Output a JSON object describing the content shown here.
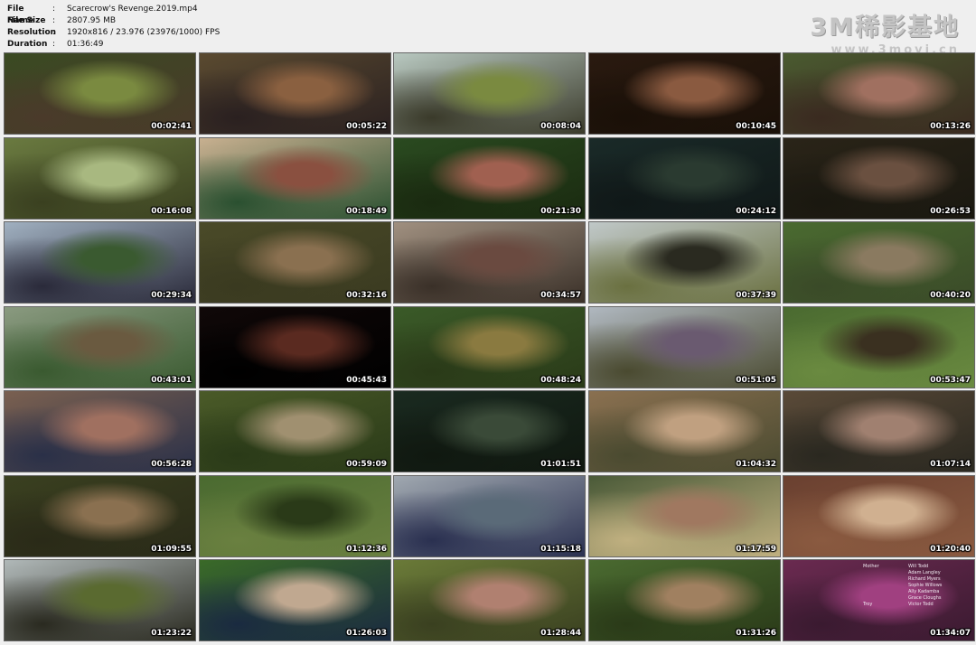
{
  "file_info": {
    "rows": [
      {
        "key": "File Name",
        "value": "Scarecrow's Revenge.2019.mp4"
      },
      {
        "key": "File Size",
        "value": "2807.95 MB"
      },
      {
        "key": "Resolution",
        "value": "1920x816 / 23.976 (23976/1000) FPS"
      },
      {
        "key": "Duration",
        "value": "01:36:49"
      }
    ],
    "separator": ":"
  },
  "watermark": {
    "main": "3M稀影基地",
    "sub": "www.3movi.cn"
  },
  "thumbnails": [
    {
      "time": "00:02:41",
      "colors": [
        "#3a4a22",
        "#7a8a40",
        "#4a3a2a"
      ]
    },
    {
      "time": "00:05:22",
      "colors": [
        "#5a4a30",
        "#8a6040",
        "#2a2020"
      ]
    },
    {
      "time": "00:08:04",
      "colors": [
        "#b8c8c0",
        "#7a8a40",
        "#3a3a2a"
      ]
    },
    {
      "time": "00:10:45",
      "colors": [
        "#2a1a10",
        "#8a5a40",
        "#1a1008"
      ]
    },
    {
      "time": "00:13:26",
      "colors": [
        "#4a5a30",
        "#a07060",
        "#3a2a20"
      ]
    },
    {
      "time": "00:16:08",
      "colors": [
        "#6a7a40",
        "#a8b880",
        "#3a4020"
      ]
    },
    {
      "time": "00:18:49",
      "colors": [
        "#c8b090",
        "#8a5040",
        "#2a5030"
      ]
    },
    {
      "time": "00:21:30",
      "colors": [
        "#2a4a20",
        "#a06050",
        "#1a2a10"
      ]
    },
    {
      "time": "00:24:12",
      "colors": [
        "#1a2a28",
        "#2a3a30",
        "#101818"
      ]
    },
    {
      "time": "00:26:53",
      "colors": [
        "#2a2418",
        "#6a5040",
        "#1a1810"
      ]
    },
    {
      "time": "00:29:34",
      "colors": [
        "#a0b0c0",
        "#3a5a30",
        "#2a2a3a"
      ]
    },
    {
      "time": "00:32:16",
      "colors": [
        "#4a4a28",
        "#8a7050",
        "#3a3a20"
      ]
    },
    {
      "time": "00:34:57",
      "colors": [
        "#a09080",
        "#6a4a40",
        "#3a3028"
      ]
    },
    {
      "time": "00:37:39",
      "colors": [
        "#c0c8c8",
        "#2a2a20",
        "#6a7040"
      ]
    },
    {
      "time": "00:40:20",
      "colors": [
        "#4a6a30",
        "#8a7a60",
        "#3a4a28"
      ]
    },
    {
      "time": "00:43:01",
      "colors": [
        "#8a9a80",
        "#6a5a40",
        "#3a5a30"
      ]
    },
    {
      "time": "00:45:43",
      "colors": [
        "#100808",
        "#5a2a20",
        "#000000"
      ]
    },
    {
      "time": "00:48:24",
      "colors": [
        "#3a5a28",
        "#8a7a40",
        "#2a3a18"
      ]
    },
    {
      "time": "00:51:05",
      "colors": [
        "#b0b8c0",
        "#6a5a70",
        "#4a4a30"
      ]
    },
    {
      "time": "00:53:47",
      "colors": [
        "#4a6a30",
        "#3a3020",
        "#6a8a40"
      ]
    },
    {
      "time": "00:56:28",
      "colors": [
        "#7a6050",
        "#a07060",
        "#2a3048"
      ]
    },
    {
      "time": "00:59:09",
      "colors": [
        "#4a5a28",
        "#a09070",
        "#2a3a18"
      ]
    },
    {
      "time": "01:01:51",
      "colors": [
        "#1a2a20",
        "#3a4a38",
        "#101810"
      ]
    },
    {
      "time": "01:04:32",
      "colors": [
        "#8a7050",
        "#c0a080",
        "#4a4a30"
      ]
    },
    {
      "time": "01:07:14",
      "colors": [
        "#5a4a38",
        "#a08070",
        "#2a2820"
      ]
    },
    {
      "time": "01:09:55",
      "colors": [
        "#3a4020",
        "#8a7050",
        "#2a2a18"
      ]
    },
    {
      "time": "01:12:36",
      "colors": [
        "#4a6a30",
        "#2a3a18",
        "#6a8040"
      ]
    },
    {
      "time": "01:15:18",
      "colors": [
        "#a0a8b0",
        "#5a6a78",
        "#2a3050"
      ]
    },
    {
      "time": "01:17:59",
      "colors": [
        "#4a5a38",
        "#a07860",
        "#c0b080"
      ]
    },
    {
      "time": "01:20:40",
      "colors": [
        "#6a4030",
        "#d0b090",
        "#8a5a40"
      ]
    },
    {
      "time": "01:23:22",
      "colors": [
        "#b0b8b8",
        "#5a6a30",
        "#2a2a20"
      ]
    },
    {
      "time": "01:26:03",
      "colors": [
        "#3a6a28",
        "#c0a890",
        "#1a2a40"
      ]
    },
    {
      "time": "01:28:44",
      "colors": [
        "#6a7a38",
        "#b08070",
        "#3a4020"
      ]
    },
    {
      "time": "01:31:26",
      "colors": [
        "#4a6a30",
        "#a08060",
        "#2a3a18"
      ]
    },
    {
      "time": "01:34:07",
      "colors": [
        "#6a2a50",
        "#a04080",
        "#3a1a30"
      ]
    }
  ],
  "credits": [
    {
      "role": "Mother",
      "name": "Will Todd"
    },
    {
      "role": "",
      "name": "Adam Langley"
    },
    {
      "role": "",
      "name": "Richard Myers"
    },
    {
      "role": "",
      "name": "Sophie Willows"
    },
    {
      "role": "",
      "name": "Ally Kadamba"
    },
    {
      "role": "",
      "name": "Grace Cloughs"
    },
    {
      "role": "Troy",
      "name": "Victor Todd"
    }
  ]
}
